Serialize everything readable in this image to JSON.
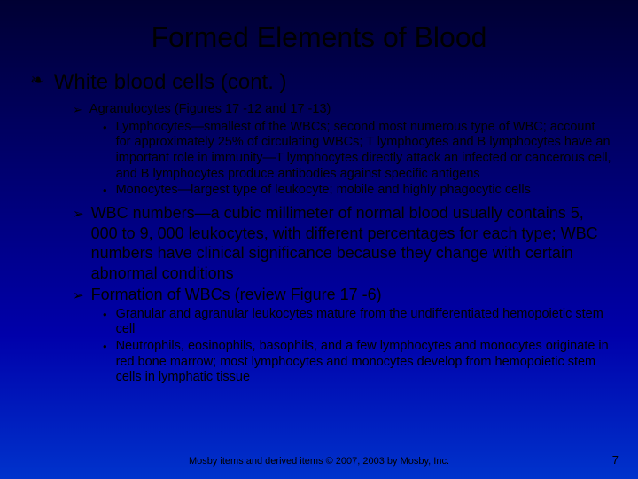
{
  "colors": {
    "bg_gradient_top": "#000033",
    "bg_gradient_mid1": "#000066",
    "bg_gradient_mid2": "#0000aa",
    "bg_gradient_bottom": "#0033cc",
    "text": "#000000"
  },
  "typography": {
    "title_fontsize": 32,
    "level1_fontsize": 24,
    "level2_small_fontsize": 14.5,
    "level2_big_fontsize": 18,
    "level3_fontsize": 14.5,
    "footer_fontsize": 11,
    "pagenum_fontsize": 13,
    "font_family": "Arial"
  },
  "bullets": {
    "level1_symbol": "❧",
    "level2_symbol": "➢",
    "level3_symbol": "•"
  },
  "slide": {
    "title": "Formed Elements of Blood",
    "level1": {
      "text": "White blood cells (cont. )"
    },
    "sub": [
      {
        "text": "Agranulocytes (Figures 17 -12 and 17 -13)",
        "size": "small",
        "children": [
          {
            "text": "Lymphocytes—smallest of the WBCs; second most numerous type of WBC; account for approximately 25% of circulating WBCs; T lymphocytes and B lymphocytes have an important role in immunity—T lymphocytes directly attack an infected or cancerous cell, and B lymphocytes produce antibodies against specific antigens"
          },
          {
            "text": "Monocytes—largest type of leukocyte; mobile and highly phagocytic cells"
          }
        ]
      },
      {
        "text": "WBC numbers—a cubic millimeter of normal blood usually contains 5, 000 to 9, 000 leukocytes, with different percentages for each type; WBC numbers have clinical significance because they change with certain abnormal conditions",
        "size": "big",
        "children": []
      },
      {
        "text": "Formation of WBCs (review Figure 17 -6)",
        "size": "big",
        "children": [
          {
            "text": "Granular and agranular leukocytes mature from the undifferentiated hemopoietic stem cell"
          },
          {
            "text": "Neutrophils, eosinophils, basophils, and a few lymphocytes and monocytes originate in red bone marrow; most lymphocytes and monocytes develop from hemopoietic stem cells in lymphatic tissue"
          }
        ]
      }
    ],
    "footer": "Mosby items and derived items © 2007, 2003 by Mosby, Inc.",
    "page_number": "7"
  }
}
